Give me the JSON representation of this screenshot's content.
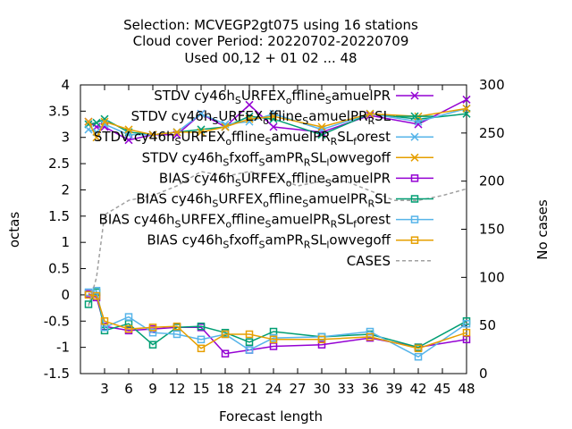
{
  "chart_data": {
    "type": "line",
    "title_lines": [
      "Selection: MCVEGP2gt075 using    16 stations",
      "Cloud cover   Period: 20220702-20220709",
      "Used  00,12  + 01 02 ... 48"
    ],
    "xlabel": "Forecast length",
    "ylabel": "octas",
    "y2label": "No cases",
    "xlim": [
      0,
      48
    ],
    "ylim": [
      -1.5,
      4
    ],
    "y2lim": [
      0,
      300
    ],
    "x_ticks": [
      3,
      6,
      9,
      12,
      15,
      18,
      21,
      24,
      27,
      30,
      33,
      36,
      39,
      42,
      45,
      48
    ],
    "y_ticks": [
      -1.5,
      -1,
      -0.5,
      0,
      0.5,
      1,
      1.5,
      2,
      2.5,
      3,
      3.5,
      4
    ],
    "y_tick_labels": [
      "-1.5",
      "-1",
      "-0.5",
      "0",
      "0.5",
      "1",
      "1.5",
      "2",
      "2.5",
      "3",
      "3.5",
      "4"
    ],
    "y2_ticks": [
      0,
      50,
      100,
      150,
      200,
      250,
      300
    ],
    "y2_tick_labels": [
      "0",
      "50",
      "100",
      "150",
      "200",
      "250",
      "300"
    ],
    "legend_position": "top-right",
    "x": [
      1,
      2,
      3,
      6,
      9,
      12,
      15,
      18,
      21,
      24,
      30,
      36,
      42,
      48
    ],
    "series": [
      {
        "name": "STDV cy46h_{S}URFEX_{o}ffline_{S}amuelPR",
        "color": "#9400d3",
        "marker": "x",
        "values": [
          3.3,
          3.2,
          3.2,
          2.95,
          3.05,
          3.05,
          3.45,
          3.2,
          3.62,
          3.2,
          3.1,
          3.42,
          3.25,
          3.72
        ]
      },
      {
        "name": "STDV cy46h_{S}URFEX_{o}ffline_{S}amuelPR_{R}SL",
        "color": "#009e73",
        "marker": "x",
        "values": [
          3.25,
          3.28,
          3.35,
          3.1,
          3.05,
          3.1,
          3.15,
          3.2,
          3.4,
          3.35,
          3.05,
          3.45,
          3.35,
          3.45
        ]
      },
      {
        "name": "STDV cy46h_{S}URFEX_{o}ffline_{S}amuelPR_{R}SL_{f}orest",
        "color": "#56b4e9",
        "marker": "x",
        "values": [
          3.15,
          3.1,
          3.25,
          3.05,
          3.05,
          3.1,
          3.45,
          3.25,
          3.3,
          3.45,
          3.15,
          3.45,
          3.3,
          3.55
        ]
      },
      {
        "name": "STDV cy46h_{S}fxoff_{S}amPR_{R}SL_{l}owvegoff",
        "color": "#e69f00",
        "marker": "x",
        "values": [
          3.3,
          3.0,
          3.3,
          3.15,
          3.05,
          3.1,
          3.1,
          3.2,
          3.35,
          3.4,
          3.2,
          3.45,
          3.4,
          3.55
        ]
      },
      {
        "name": "BIAS cy46h_{S}URFEX_{o}ffline_{S}amuelPR",
        "color": "#9400d3",
        "marker": "square",
        "values": [
          0.02,
          -0.05,
          -0.6,
          -0.68,
          -0.65,
          -0.62,
          -0.62,
          -1.12,
          -1.05,
          -0.98,
          -0.95,
          -0.82,
          -1.0,
          -0.85
        ]
      },
      {
        "name": "BIAS cy46h_{S}URFEX_{o}ffline_{S}amuelPR_{R}SL",
        "color": "#009e73",
        "marker": "square",
        "values": [
          -0.18,
          0.05,
          -0.68,
          -0.55,
          -0.95,
          -0.62,
          -0.6,
          -0.72,
          -0.9,
          -0.7,
          -0.8,
          -0.75,
          -1.0,
          -0.5
        ]
      },
      {
        "name": "BIAS cy46h_{S}URFEX_{o}ffline_{S}amuelPR_{R}SL_{f}orest",
        "color": "#56b4e9",
        "marker": "square",
        "values": [
          0.05,
          0.08,
          -0.62,
          -0.42,
          -0.72,
          -0.75,
          -0.85,
          -0.75,
          -1.05,
          -0.82,
          -0.8,
          -0.7,
          -1.18,
          -0.55
        ]
      },
      {
        "name": "BIAS cy46h_{S}fxoff_{S}amPR_{R}SL_{l}owvegoff",
        "color": "#e69f00",
        "marker": "square",
        "values": [
          0.0,
          -0.02,
          -0.5,
          -0.65,
          -0.62,
          -0.6,
          -1.02,
          -0.75,
          -0.75,
          -0.85,
          -0.85,
          -0.8,
          -1.02,
          -0.72
        ]
      },
      {
        "name": "CASES",
        "color": "#a0a0a0",
        "style": "dashed",
        "axis": "y2",
        "x": [
          1,
          2,
          3,
          6,
          9,
          12,
          15,
          18,
          21,
          24,
          27,
          30,
          33,
          36,
          39,
          42,
          45,
          48
        ],
        "values": [
          70,
          100,
          165,
          180,
          185,
          195,
          210,
          205,
          210,
          205,
          195,
          200,
          200,
          190,
          180,
          180,
          185,
          192
        ]
      }
    ]
  }
}
